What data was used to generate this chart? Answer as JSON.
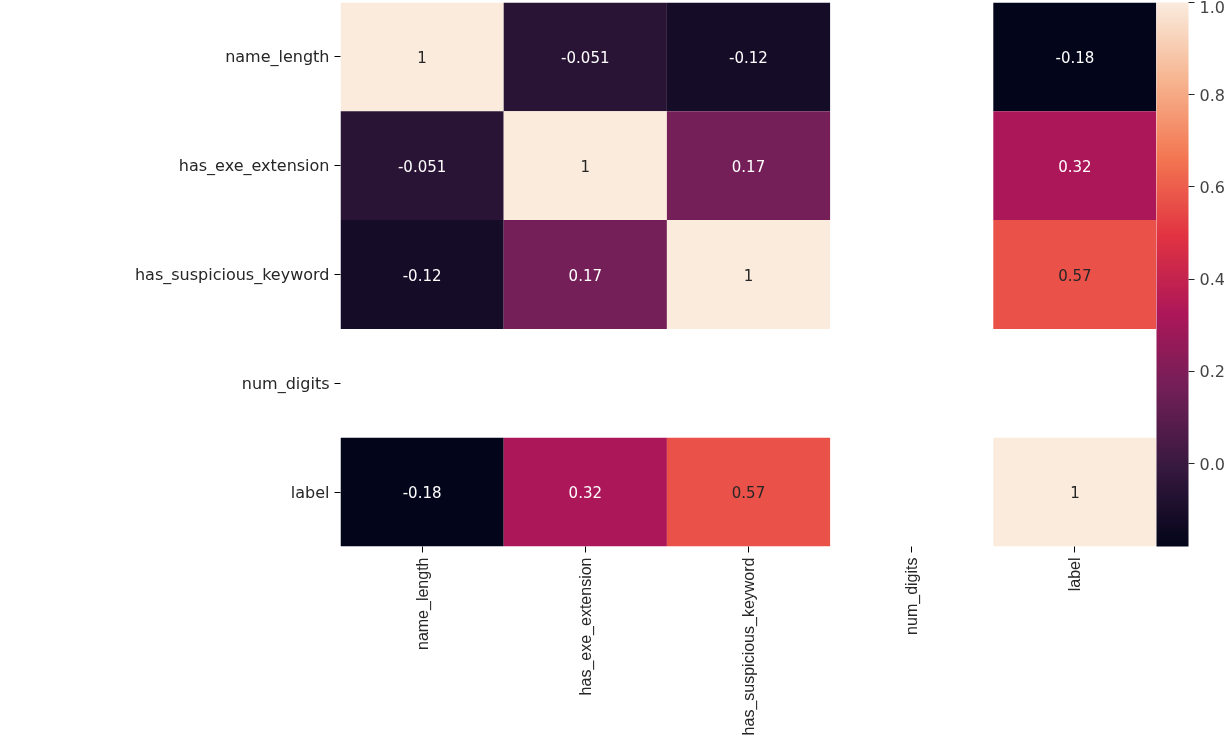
{
  "chart_data": {
    "type": "heatmap",
    "categories": [
      "name_length",
      "has_exe_extension",
      "has_suspicious_keyword",
      "num_digits",
      "label"
    ],
    "y_categories": [
      "name_length",
      "has_exe_extension",
      "has_suspicious_keyword",
      "num_digits",
      "label"
    ],
    "cells": [
      [
        1,
        -0.051,
        -0.12,
        null,
        -0.18
      ],
      [
        -0.051,
        1,
        0.17,
        null,
        0.32
      ],
      [
        -0.12,
        0.17,
        1,
        null,
        0.57
      ],
      [
        null,
        null,
        null,
        null,
        null
      ],
      [
        -0.18,
        0.32,
        0.57,
        null,
        1
      ]
    ],
    "clim": [
      -0.18,
      1.0
    ],
    "cticks": [
      {
        "value": 0.0,
        "label": "0.0"
      },
      {
        "value": 0.2,
        "label": "0.2"
      },
      {
        "value": 0.4,
        "label": "0.4"
      },
      {
        "value": 0.6,
        "label": "0.6"
      },
      {
        "value": 0.8,
        "label": "0.8"
      },
      {
        "value": 1.0,
        "label": "1.0"
      }
    ],
    "data_labels": true
  }
}
